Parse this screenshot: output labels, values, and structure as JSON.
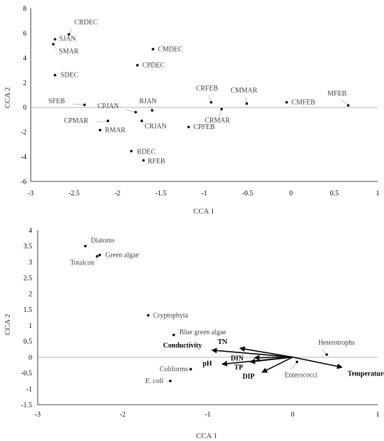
{
  "chart_data": [
    {
      "type": "scatter",
      "xlabel": "CCA 1",
      "ylabel": "CCA 2",
      "xlim": [
        -3,
        1
      ],
      "ylim": [
        -6,
        8
      ],
      "xticks": [
        -3,
        -2.5,
        -2,
        -1.5,
        -1,
        -0.5,
        0,
        0.5,
        1
      ],
      "yticks": [
        -6,
        -4,
        -2,
        0,
        2,
        4,
        6,
        8
      ],
      "grid": false,
      "points": [
        {
          "label": "CRDEC",
          "x": -2.56,
          "y": 5.9
        },
        {
          "label": "SJAN",
          "x": -2.72,
          "y": 5.5
        },
        {
          "label": "SMAR",
          "x": -2.74,
          "y": 5.1
        },
        {
          "label": "CMDEC",
          "x": -1.59,
          "y": 4.7
        },
        {
          "label": "CPDEC",
          "x": -1.77,
          "y": 3.4
        },
        {
          "label": "SDEC",
          "x": -2.72,
          "y": 2.6
        },
        {
          "label": "SFEB",
          "x": -2.38,
          "y": 0.2
        },
        {
          "label": "CPJAN",
          "x": -1.79,
          "y": -0.4
        },
        {
          "label": "RJAN",
          "x": -1.6,
          "y": -0.25
        },
        {
          "label": "CRJAN",
          "x": -1.72,
          "y": -1.1
        },
        {
          "label": "CPMAR",
          "x": -2.11,
          "y": -1.1
        },
        {
          "label": "RMAR",
          "x": -2.2,
          "y": -1.85
        },
        {
          "label": "CRFEB",
          "x": -0.92,
          "y": 0.4
        },
        {
          "label": "CMMAR",
          "x": -0.51,
          "y": 0.3
        },
        {
          "label": "CRMAR",
          "x": -0.8,
          "y": -0.15
        },
        {
          "label": "CPFEB",
          "x": -1.18,
          "y": -1.6
        },
        {
          "label": "CMFEB",
          "x": -0.05,
          "y": 0.4
        },
        {
          "label": "MFEB",
          "x": 0.66,
          "y": 0.15
        },
        {
          "label": "RDEC",
          "x": -1.84,
          "y": -3.55
        },
        {
          "label": "RFEB",
          "x": -1.7,
          "y": -4.3
        }
      ]
    },
    {
      "type": "scatter",
      "xlabel": "CCA 1",
      "ylabel": "CCA 2",
      "xlim": [
        -3,
        1
      ],
      "ylim": [
        -1.5,
        4
      ],
      "xticks": [
        -3,
        -2,
        -1,
        0,
        1
      ],
      "yticks": [
        -1.5,
        -1,
        -0.5,
        0,
        0.5,
        1,
        1.5,
        2,
        2.5,
        3,
        3.5,
        4
      ],
      "grid": false,
      "points": [
        {
          "label": "Diatoms",
          "x": -2.44,
          "y": 3.5
        },
        {
          "label": "Green algae",
          "x": -2.27,
          "y": 3.22
        },
        {
          "label": "Totalcon",
          "x": -2.3,
          "y": 3.18
        },
        {
          "label": "Cryptophyta",
          "x": -1.7,
          "y": 1.32
        },
        {
          "label": "Blue green algae",
          "x": -1.4,
          "y": 0.7
        },
        {
          "label": "Coliforms",
          "x": -1.2,
          "y": -0.38
        },
        {
          "label": "E. coli",
          "x": -1.44,
          "y": -0.75
        },
        {
          "label": "Heterotrophs",
          "x": 0.4,
          "y": 0.08
        },
        {
          "label": "Enterococci",
          "x": 0.05,
          "y": -0.15
        }
      ],
      "vectors": [
        {
          "label": "Temperature",
          "x": 0.58,
          "y": -0.32
        },
        {
          "label": "TN",
          "x": -0.62,
          "y": 0.28
        },
        {
          "label": "Conductivity",
          "x": -0.95,
          "y": 0.22
        },
        {
          "label": "DIN",
          "x": -0.45,
          "y": -0.02
        },
        {
          "label": "pH",
          "x": -0.83,
          "y": -0.22
        },
        {
          "label": "TP",
          "x": -0.5,
          "y": -0.15
        },
        {
          "label": "DIP",
          "x": -0.36,
          "y": -0.48
        }
      ]
    }
  ]
}
